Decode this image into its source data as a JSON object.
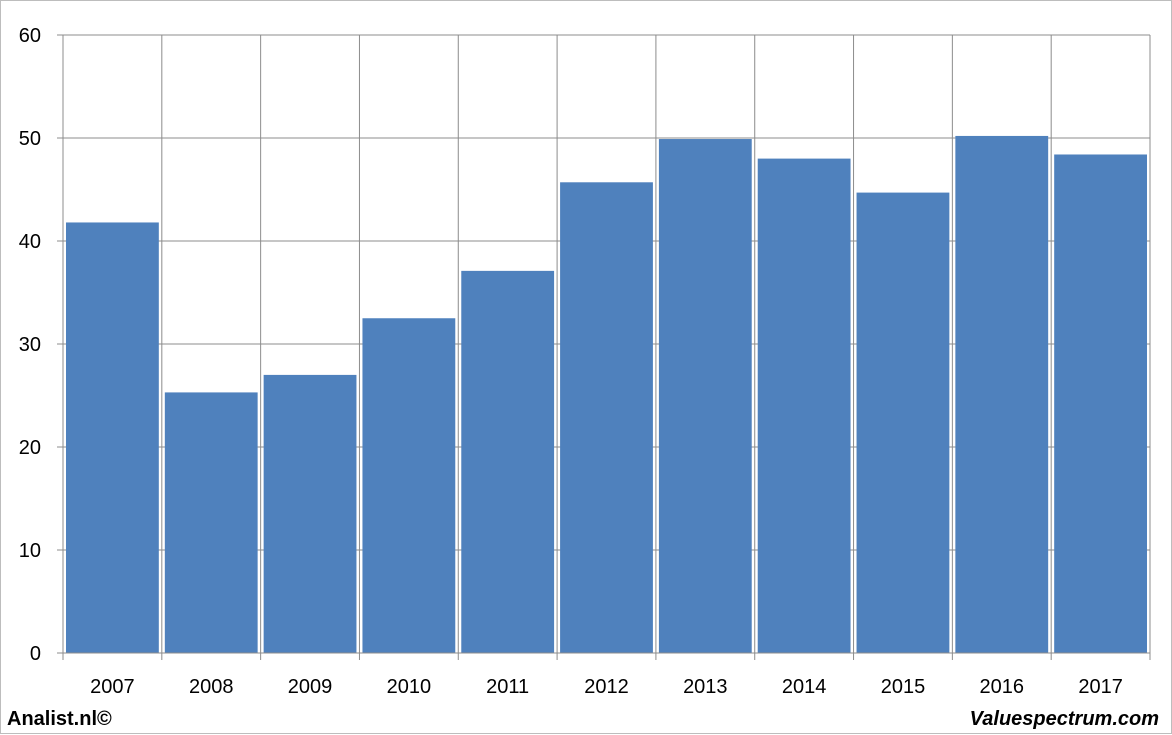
{
  "chart_data": {
    "type": "bar",
    "categories": [
      "2007",
      "2008",
      "2009",
      "2010",
      "2011",
      "2012",
      "2013",
      "2014",
      "2015",
      "2016",
      "2017"
    ],
    "values": [
      41.8,
      25.3,
      27.0,
      32.5,
      37.1,
      45.7,
      49.9,
      48.0,
      44.7,
      50.2,
      48.4
    ],
    "title": "",
    "xlabel": "",
    "ylabel": "",
    "ylim": [
      0,
      60
    ],
    "yticks": [
      0,
      10,
      20,
      30,
      40,
      50,
      60
    ],
    "ytick_labels": [
      "0",
      "10",
      "20",
      "30",
      "40",
      "50",
      "60"
    ],
    "grid": true,
    "legend": "none",
    "colors": {
      "bar": "#4f81bd",
      "grid": "#8c8c8c",
      "axis": "#8c8c8c"
    }
  },
  "footer": {
    "left": "Analist.nl©",
    "right": "Valuespectrum.com"
  }
}
